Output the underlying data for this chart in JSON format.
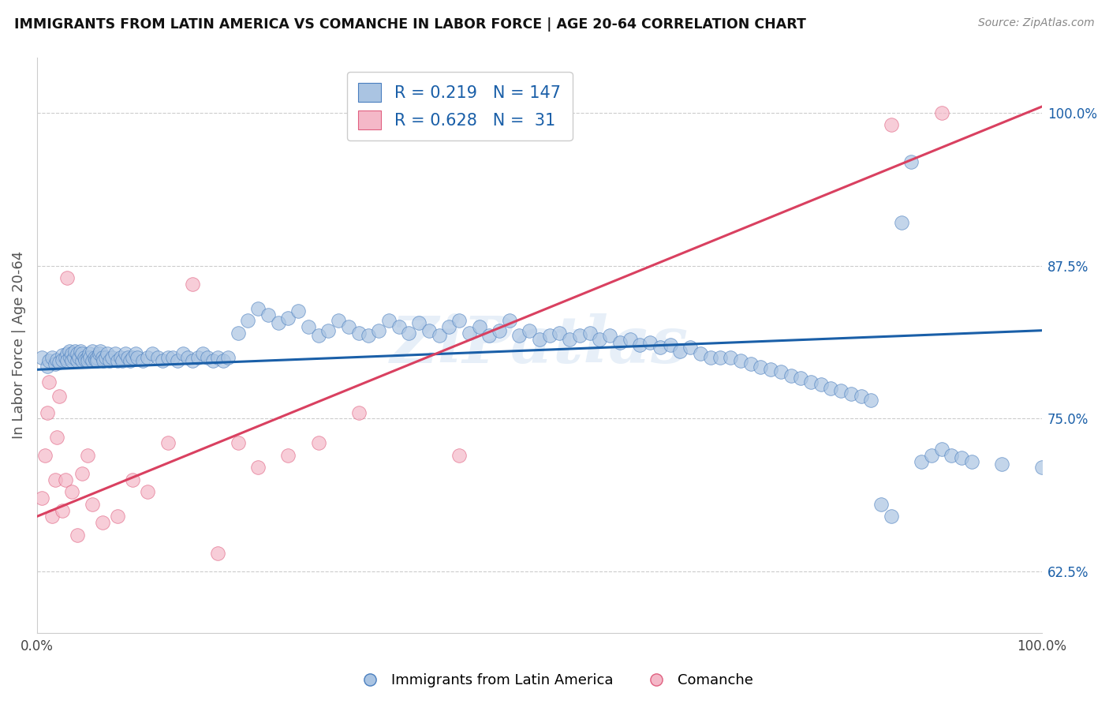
{
  "title": "IMMIGRANTS FROM LATIN AMERICA VS COMANCHE IN LABOR FORCE | AGE 20-64 CORRELATION CHART",
  "source": "Source: ZipAtlas.com",
  "ylabel": "In Labor Force | Age 20-64",
  "legend_labels": [
    "Immigrants from Latin America",
    "Comanche"
  ],
  "blue_R": 0.219,
  "blue_N": 147,
  "pink_R": 0.628,
  "pink_N": 31,
  "blue_color": "#aac4e2",
  "blue_edge_color": "#4a7fbf",
  "blue_line_color": "#1a5fa8",
  "pink_color": "#f4b8c8",
  "pink_edge_color": "#e06080",
  "pink_line_color": "#d94060",
  "watermark": "ZiPatlas",
  "xlim": [
    0.0,
    1.0
  ],
  "ylim": [
    0.575,
    1.045
  ],
  "right_yticks": [
    0.625,
    0.75,
    0.875,
    1.0
  ],
  "right_yticklabels": [
    "62.5%",
    "75.0%",
    "87.5%",
    "100.0%"
  ],
  "xtick_positions": [
    0.0,
    0.1,
    0.2,
    0.3,
    0.4,
    0.5,
    0.6,
    0.7,
    0.8,
    0.9,
    1.0
  ],
  "xtick_labels": [
    "0.0%",
    "",
    "",
    "",
    "",
    "",
    "",
    "",
    "",
    "",
    "100.0%"
  ],
  "blue_trend_y_start": 0.79,
  "blue_trend_y_end": 0.822,
  "pink_trend_y_start": 0.67,
  "pink_trend_y_end": 1.005,
  "blue_scatter_x": [
    0.005,
    0.01,
    0.012,
    0.015,
    0.018,
    0.02,
    0.022,
    0.025,
    0.025,
    0.028,
    0.03,
    0.03,
    0.032,
    0.033,
    0.035,
    0.035,
    0.037,
    0.038,
    0.04,
    0.04,
    0.042,
    0.043,
    0.045,
    0.045,
    0.047,
    0.048,
    0.05,
    0.05,
    0.052,
    0.053,
    0.055,
    0.055,
    0.057,
    0.058,
    0.06,
    0.06,
    0.062,
    0.063,
    0.065,
    0.066,
    0.068,
    0.07,
    0.072,
    0.075,
    0.078,
    0.08,
    0.083,
    0.085,
    0.088,
    0.09,
    0.093,
    0.095,
    0.098,
    0.1,
    0.105,
    0.11,
    0.115,
    0.12,
    0.125,
    0.13,
    0.135,
    0.14,
    0.145,
    0.15,
    0.155,
    0.16,
    0.165,
    0.17,
    0.175,
    0.18,
    0.185,
    0.19,
    0.2,
    0.21,
    0.22,
    0.23,
    0.24,
    0.25,
    0.26,
    0.27,
    0.28,
    0.29,
    0.3,
    0.31,
    0.32,
    0.33,
    0.34,
    0.35,
    0.36,
    0.37,
    0.38,
    0.39,
    0.4,
    0.41,
    0.42,
    0.43,
    0.44,
    0.45,
    0.46,
    0.47,
    0.48,
    0.49,
    0.5,
    0.51,
    0.52,
    0.53,
    0.54,
    0.55,
    0.56,
    0.57,
    0.58,
    0.59,
    0.6,
    0.61,
    0.62,
    0.63,
    0.64,
    0.65,
    0.66,
    0.67,
    0.68,
    0.69,
    0.7,
    0.71,
    0.72,
    0.73,
    0.74,
    0.75,
    0.76,
    0.77,
    0.78,
    0.79,
    0.8,
    0.81,
    0.82,
    0.83,
    0.84,
    0.85,
    0.86,
    0.87,
    0.88,
    0.89,
    0.9,
    0.91,
    0.92,
    0.93,
    0.96,
    1.0
  ],
  "blue_scatter_y": [
    0.8,
    0.793,
    0.797,
    0.8,
    0.795,
    0.798,
    0.796,
    0.802,
    0.798,
    0.8,
    0.803,
    0.797,
    0.805,
    0.8,
    0.803,
    0.797,
    0.8,
    0.805,
    0.797,
    0.803,
    0.8,
    0.805,
    0.797,
    0.803,
    0.8,
    0.798,
    0.8,
    0.797,
    0.803,
    0.8,
    0.797,
    0.805,
    0.8,
    0.798,
    0.8,
    0.797,
    0.803,
    0.805,
    0.8,
    0.797,
    0.8,
    0.803,
    0.797,
    0.8,
    0.803,
    0.797,
    0.8,
    0.797,
    0.803,
    0.8,
    0.797,
    0.8,
    0.803,
    0.8,
    0.797,
    0.8,
    0.803,
    0.8,
    0.797,
    0.8,
    0.8,
    0.797,
    0.803,
    0.8,
    0.797,
    0.8,
    0.803,
    0.8,
    0.797,
    0.8,
    0.797,
    0.8,
    0.82,
    0.83,
    0.84,
    0.835,
    0.828,
    0.832,
    0.838,
    0.825,
    0.818,
    0.822,
    0.83,
    0.825,
    0.82,
    0.818,
    0.822,
    0.83,
    0.825,
    0.82,
    0.828,
    0.822,
    0.818,
    0.825,
    0.83,
    0.82,
    0.825,
    0.818,
    0.822,
    0.83,
    0.818,
    0.822,
    0.815,
    0.818,
    0.82,
    0.815,
    0.818,
    0.82,
    0.815,
    0.818,
    0.812,
    0.815,
    0.81,
    0.812,
    0.808,
    0.81,
    0.805,
    0.808,
    0.803,
    0.8,
    0.8,
    0.8,
    0.797,
    0.795,
    0.792,
    0.79,
    0.788,
    0.785,
    0.783,
    0.78,
    0.778,
    0.775,
    0.773,
    0.77,
    0.768,
    0.765,
    0.68,
    0.67,
    0.91,
    0.96,
    0.715,
    0.72,
    0.725,
    0.72,
    0.718,
    0.715,
    0.713,
    0.71
  ],
  "pink_scatter_x": [
    0.005,
    0.008,
    0.01,
    0.012,
    0.015,
    0.018,
    0.02,
    0.022,
    0.025,
    0.028,
    0.03,
    0.035,
    0.04,
    0.045,
    0.05,
    0.055,
    0.065,
    0.08,
    0.095,
    0.11,
    0.13,
    0.155,
    0.18,
    0.2,
    0.22,
    0.25,
    0.28,
    0.32,
    0.42,
    0.85,
    0.9
  ],
  "pink_scatter_y": [
    0.685,
    0.72,
    0.755,
    0.78,
    0.67,
    0.7,
    0.735,
    0.768,
    0.675,
    0.7,
    0.865,
    0.69,
    0.655,
    0.705,
    0.72,
    0.68,
    0.665,
    0.67,
    0.7,
    0.69,
    0.73,
    0.86,
    0.64,
    0.73,
    0.71,
    0.72,
    0.73,
    0.755,
    0.72,
    0.99,
    1.0
  ]
}
